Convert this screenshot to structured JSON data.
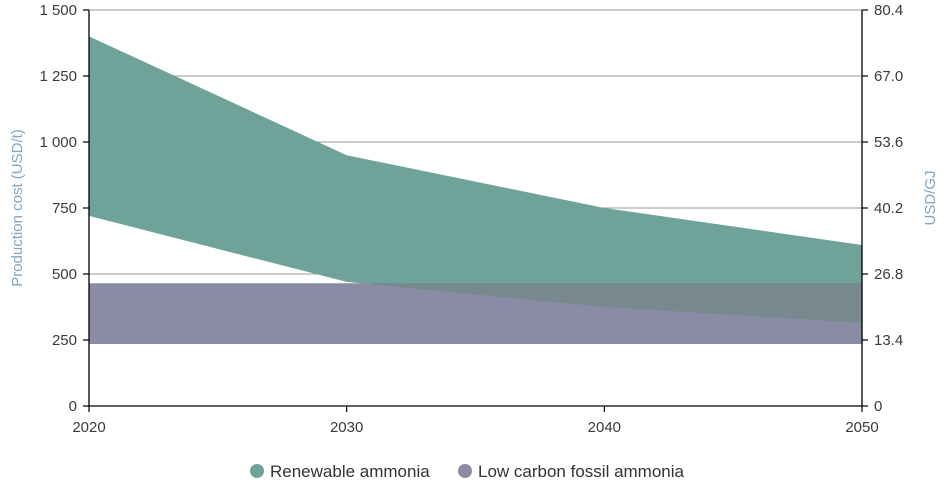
{
  "chart_data": {
    "type": "area",
    "x": [
      2020,
      2030,
      2040,
      2050
    ],
    "x_tick_labels": [
      "2020",
      "2030",
      "2040",
      "2050"
    ],
    "xlim": [
      2020,
      2050
    ],
    "ylim": [
      0,
      1500
    ],
    "y_ticks": [
      0,
      250,
      500,
      750,
      1000,
      1250,
      1500
    ],
    "y_tick_labels": [
      "0",
      "250",
      "500",
      "750",
      "1 000",
      "1 250",
      "1 500"
    ],
    "ylabel": "Production cost (USD/t)",
    "y2label": "USD/GJ",
    "y2_tick_labels": [
      "0",
      "13.4",
      "26.8",
      "40.2",
      "53.6",
      "67.0",
      "80.4"
    ],
    "grid": "horizontal",
    "legend_position": "bottom-center",
    "series": [
      {
        "name": "Renewable ammonia",
        "color": "#6fa39a",
        "lower": [
          720,
          470,
          375,
          315
        ],
        "upper": [
          1400,
          950,
          750,
          610
        ]
      },
      {
        "name": "Low carbon fossil ammonia",
        "color": "#8a8ca5",
        "lower": [
          235,
          235,
          235,
          235
        ],
        "upper": [
          465,
          465,
          465,
          465
        ]
      }
    ],
    "overlap_color": "#77888f",
    "axis_title_color": "#7fa6c8"
  }
}
